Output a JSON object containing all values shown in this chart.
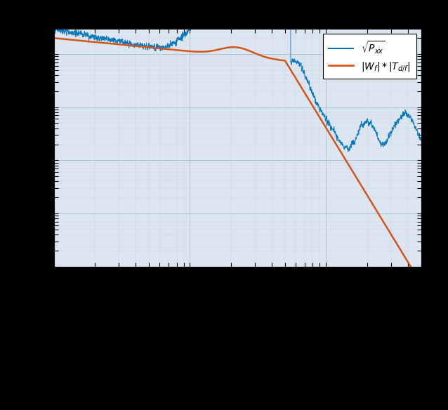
{
  "blue_color": "#0072BD",
  "orange_color": "#D95319",
  "legend_label_blue": "$\\sqrt{P_{xx}}$",
  "legend_label_orange": "$|W_f| * |T_{d/f}|$",
  "background_color": "#dce6f0",
  "outer_color": "#000000",
  "figsize": [
    6.38,
    5.84
  ],
  "dpi": 100,
  "xlim_low": 1,
  "xlim_high": 500,
  "ylim_low": 1e-09,
  "ylim_high": 3e-05,
  "grid_major_color": "#aabccc",
  "grid_minor_color": "#c8d8e4"
}
